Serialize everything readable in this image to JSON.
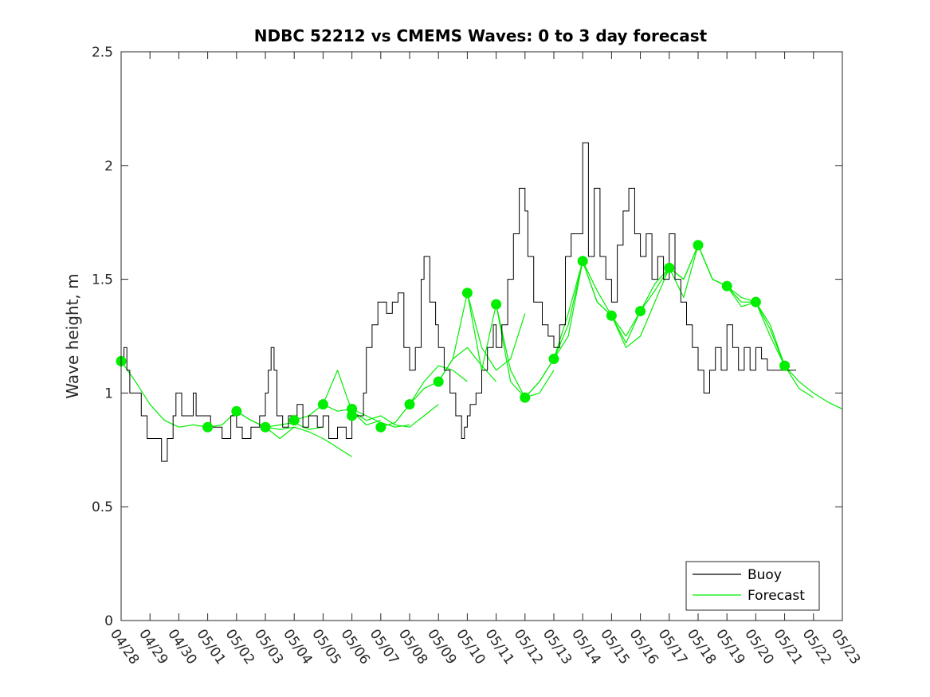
{
  "chart_data": {
    "type": "line",
    "title": "NDBC 52212 vs CMEMS Waves: 0 to 3 day forecast",
    "xlabel": "",
    "ylabel": "Wave height, m",
    "ylim": [
      0,
      2.5
    ],
    "xlim_days": [
      0,
      25
    ],
    "yticks": [
      0,
      0.5,
      1,
      1.5,
      2,
      2.5
    ],
    "ytick_labels": [
      "0",
      "0.5",
      "1",
      "1.5",
      "2",
      "2.5"
    ],
    "xtick_labels": [
      "04/28",
      "04/29",
      "04/30",
      "05/01",
      "05/02",
      "05/03",
      "05/04",
      "05/05",
      "05/06",
      "05/07",
      "05/08",
      "05/09",
      "05/10",
      "05/11",
      "05/12",
      "05/13",
      "05/14",
      "05/15",
      "05/16",
      "05/17",
      "05/18",
      "05/19",
      "05/20",
      "05/21",
      "05/22",
      "05/23"
    ],
    "legend_position": "bottom-right",
    "colors": {
      "buoy": "#000000",
      "forecast": "#00ee00"
    },
    "series": [
      {
        "name": "Buoy",
        "x": [
          0,
          0.1,
          0.2,
          0.3,
          0.5,
          0.7,
          0.9,
          1.0,
          1.3,
          1.4,
          1.6,
          1.8,
          1.9,
          2.1,
          2.2,
          2.4,
          2.5,
          2.6,
          2.8,
          3.0,
          3.1,
          3.2,
          3.5,
          3.8,
          4.0,
          4.2,
          4.5,
          4.8,
          5.0,
          5.1,
          5.2,
          5.3,
          5.4,
          5.6,
          5.8,
          6.0,
          6.1,
          6.3,
          6.5,
          6.8,
          7.0,
          7.2,
          7.5,
          7.8,
          8.0,
          8.2,
          8.4,
          8.5,
          8.7,
          8.9,
          9.0,
          9.2,
          9.4,
          9.6,
          9.8,
          10.0,
          10.2,
          10.4,
          10.5,
          10.7,
          10.9,
          11.0,
          11.2,
          11.4,
          11.6,
          11.8,
          11.9,
          12.0,
          12.1,
          12.3,
          12.5,
          12.7,
          12.9,
          13.0,
          13.2,
          13.4,
          13.6,
          13.8,
          14.0,
          14.1,
          14.3,
          14.5,
          14.6,
          14.8,
          15.0,
          15.2,
          15.4,
          15.6,
          15.8,
          16.0,
          16.2,
          16.4,
          16.6,
          16.8,
          17.0,
          17.2,
          17.4,
          17.6,
          17.8,
          18.0,
          18.2,
          18.4,
          18.6,
          18.8,
          19.0,
          19.2,
          19.4,
          19.6,
          19.8,
          20.0,
          20.2,
          20.4,
          20.6,
          20.8,
          21.0,
          21.2,
          21.4,
          21.6,
          21.8,
          22.0,
          22.2,
          22.4,
          22.6,
          22.8,
          23.0,
          23.2,
          23.4
        ],
        "y": [
          1.14,
          1.2,
          1.1,
          1.0,
          1.0,
          0.9,
          0.8,
          0.8,
          0.8,
          0.7,
          0.8,
          0.9,
          1.0,
          0.9,
          0.9,
          0.9,
          1.0,
          0.9,
          0.9,
          0.9,
          0.85,
          0.85,
          0.8,
          0.9,
          0.85,
          0.8,
          0.85,
          0.9,
          1.0,
          1.1,
          1.2,
          1.1,
          0.9,
          0.85,
          0.9,
          0.9,
          0.95,
          0.85,
          0.9,
          0.85,
          0.9,
          0.8,
          0.85,
          0.8,
          0.9,
          0.9,
          1.0,
          1.2,
          1.3,
          1.4,
          1.4,
          1.35,
          1.4,
          1.44,
          1.2,
          1.1,
          1.2,
          1.5,
          1.6,
          1.4,
          1.3,
          1.2,
          1.1,
          1.0,
          0.9,
          0.8,
          0.85,
          0.9,
          0.95,
          1.0,
          1.1,
          1.2,
          1.3,
          1.2,
          1.3,
          1.5,
          1.7,
          1.9,
          1.8,
          1.6,
          1.4,
          1.4,
          1.3,
          1.25,
          1.2,
          1.3,
          1.6,
          1.7,
          1.7,
          2.1,
          1.6,
          1.9,
          1.6,
          1.5,
          1.4,
          1.65,
          1.8,
          1.9,
          1.7,
          1.6,
          1.7,
          1.5,
          1.6,
          1.5,
          1.7,
          1.5,
          1.4,
          1.3,
          1.2,
          1.1,
          1.0,
          1.1,
          1.2,
          1.1,
          1.3,
          1.2,
          1.1,
          1.2,
          1.1,
          1.2,
          1.15,
          1.1,
          1.1,
          1.1,
          1.1,
          1.1,
          1.1
        ]
      },
      {
        "name": "Forecast",
        "runs": [
          {
            "x": [
              0,
              0.5,
              1.0,
              1.5,
              2.0,
              2.5,
              3.0
            ],
            "y": [
              1.14,
              1.05,
              0.95,
              0.88,
              0.85,
              0.86,
              0.85
            ]
          },
          {
            "x": [
              3.0,
              3.5,
              4.0,
              4.5,
              5.0,
              5.5,
              6.0
            ],
            "y": [
              0.85,
              0.86,
              0.92,
              0.88,
              0.85,
              0.8,
              0.85
            ]
          },
          {
            "x": [
              4.0,
              4.5,
              5.0,
              5.5,
              6.0,
              6.5,
              7.0
            ],
            "y": [
              0.92,
              0.88,
              0.85,
              0.86,
              0.87,
              0.84,
              0.85
            ]
          },
          {
            "x": [
              5.0,
              5.5,
              6.0,
              6.5,
              7.0,
              7.5,
              8.0
            ],
            "y": [
              0.85,
              0.84,
              0.85,
              0.83,
              0.8,
              0.76,
              0.72
            ]
          },
          {
            "x": [
              6.0,
              6.5,
              7.0,
              7.5,
              8.0,
              8.5,
              9.0
            ],
            "y": [
              0.88,
              0.9,
              0.95,
              1.1,
              0.92,
              0.86,
              0.88
            ]
          },
          {
            "x": [
              7.0,
              7.5,
              8.0,
              8.5,
              9.0,
              9.5,
              10.0
            ],
            "y": [
              0.95,
              0.92,
              0.93,
              0.9,
              0.87,
              0.85,
              0.86
            ]
          },
          {
            "x": [
              8.0,
              8.5,
              9.0,
              9.5,
              10.0,
              10.5,
              11.0
            ],
            "y": [
              0.92,
              0.88,
              0.9,
              0.86,
              0.85,
              0.9,
              0.95
            ]
          },
          {
            "x": [
              9.0,
              9.5,
              10.0,
              10.5,
              11.0,
              11.5,
              12.0
            ],
            "y": [
              0.85,
              0.87,
              0.95,
              1.05,
              1.12,
              1.1,
              1.05
            ]
          },
          {
            "x": [
              10.0,
              10.5,
              11.0,
              11.5,
              12.0,
              12.5,
              13.0
            ],
            "y": [
              0.95,
              1.02,
              1.05,
              1.15,
              1.2,
              1.12,
              1.05
            ]
          },
          {
            "x": [
              11.0,
              11.5,
              12.0,
              12.5,
              13.0,
              13.5,
              14.0
            ],
            "y": [
              1.05,
              1.15,
              1.44,
              1.2,
              1.1,
              1.15,
              1.35
            ]
          },
          {
            "x": [
              12.0,
              12.5,
              13.0,
              13.5,
              14.0,
              14.5,
              15.0
            ],
            "y": [
              1.44,
              1.1,
              1.39,
              1.05,
              0.98,
              1.0,
              1.1
            ]
          },
          {
            "x": [
              13.0,
              13.5,
              14.0,
              14.5,
              15.0,
              15.5,
              16.0
            ],
            "y": [
              1.39,
              1.1,
              0.98,
              1.05,
              1.15,
              1.3,
              1.58
            ]
          },
          {
            "x": [
              14.0,
              14.5,
              15.0,
              15.5,
              16.0,
              16.5,
              17.0
            ],
            "y": [
              0.98,
              1.05,
              1.15,
              1.25,
              1.58,
              1.4,
              1.34
            ]
          },
          {
            "x": [
              15.0,
              15.5,
              16.0,
              16.5,
              17.0,
              17.5,
              18.0
            ],
            "y": [
              1.15,
              1.35,
              1.58,
              1.4,
              1.34,
              1.22,
              1.36
            ]
          },
          {
            "x": [
              16.0,
              16.5,
              17.0,
              17.5,
              18.0,
              18.5,
              19.0
            ],
            "y": [
              1.58,
              1.45,
              1.34,
              1.2,
              1.25,
              1.4,
              1.55
            ]
          },
          {
            "x": [
              17.0,
              17.5,
              18.0,
              18.5,
              19.0,
              19.5,
              20.0
            ],
            "y": [
              1.34,
              1.25,
              1.36,
              1.45,
              1.55,
              1.5,
              1.65
            ]
          },
          {
            "x": [
              18.0,
              18.5,
              19.0,
              19.5,
              20.0,
              20.5,
              21.0
            ],
            "y": [
              1.36,
              1.48,
              1.55,
              1.42,
              1.65,
              1.5,
              1.47
            ]
          },
          {
            "x": [
              19.0,
              19.5,
              20.0,
              20.5,
              21.0,
              21.5,
              22.0
            ],
            "y": [
              1.55,
              1.5,
              1.65,
              1.5,
              1.47,
              1.42,
              1.4
            ]
          },
          {
            "x": [
              20.0,
              20.5,
              21.0,
              21.5,
              22.0,
              22.5,
              23.0
            ],
            "y": [
              1.65,
              1.5,
              1.47,
              1.38,
              1.4,
              1.25,
              1.12
            ]
          },
          {
            "x": [
              21.0,
              21.5,
              22.0,
              22.5,
              23.0,
              23.5,
              24.0
            ],
            "y": [
              1.47,
              1.4,
              1.4,
              1.28,
              1.12,
              1.02,
              0.98
            ]
          },
          {
            "x": [
              22.0,
              22.5,
              23.0,
              23.5,
              24.0,
              24.5,
              25.0
            ],
            "y": [
              1.4,
              1.3,
              1.12,
              1.05,
              1.0,
              0.96,
              0.93
            ]
          }
        ],
        "analysis_points": {
          "x": [
            0,
            3,
            4,
            5,
            6,
            7,
            8,
            8,
            9,
            10,
            11,
            12,
            13,
            14,
            15,
            16,
            17,
            18,
            19,
            20,
            21,
            22,
            23
          ],
          "y": [
            1.14,
            0.85,
            0.92,
            0.85,
            0.88,
            0.95,
            0.93,
            0.9,
            0.85,
            0.95,
            1.05,
            1.44,
            1.39,
            0.98,
            1.15,
            1.58,
            1.34,
            1.36,
            1.55,
            1.65,
            1.47,
            1.4,
            1.12
          ]
        }
      }
    ]
  }
}
